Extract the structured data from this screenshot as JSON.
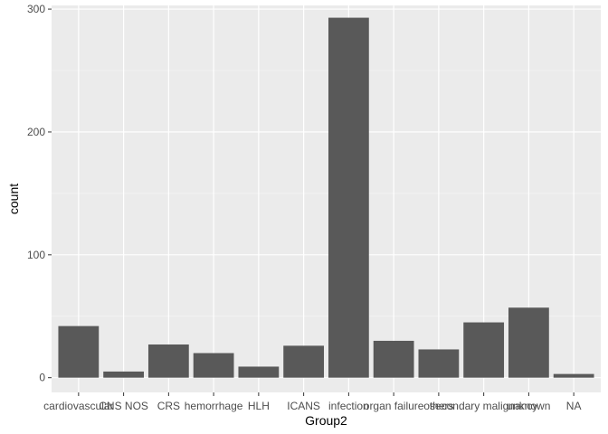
{
  "chart_data": {
    "type": "bar",
    "title": "",
    "xlabel": "Group2",
    "ylabel": "count",
    "categories": [
      "cardiovascular",
      "CNS NOS",
      "CRS",
      "hemorrhage",
      "HLH",
      "ICANS",
      "infection",
      "organ failure",
      "others",
      "secondary malignancy",
      "unknown",
      "NA"
    ],
    "values": [
      42,
      5,
      27,
      20,
      9,
      26,
      293,
      30,
      23,
      45,
      57,
      3
    ],
    "ylim": [
      -12,
      303
    ],
    "yticks": [
      0,
      100,
      200,
      300
    ],
    "grid": true,
    "legend": "none",
    "colors": {
      "bar": "#595959",
      "panel": "#ebebeb",
      "grid_major": "#ffffff",
      "grid_minor": "#f5f5f5"
    }
  }
}
